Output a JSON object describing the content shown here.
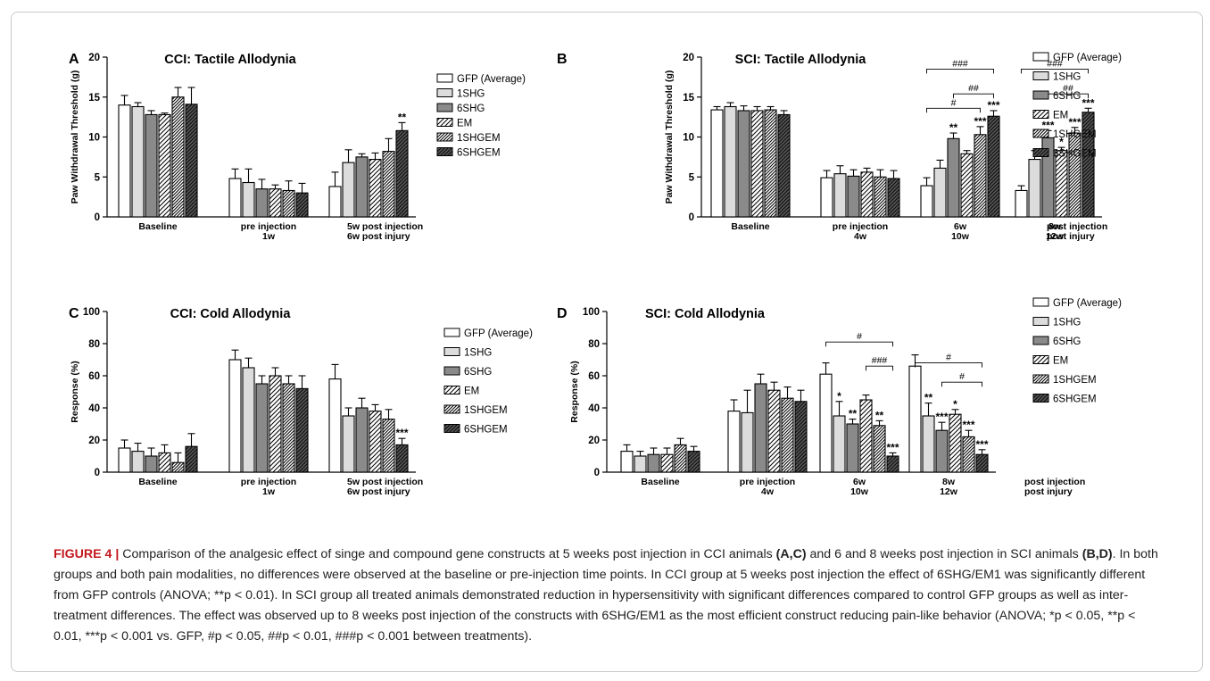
{
  "legend_labels": [
    "GFP (Average)",
    "1SHG",
    "6SHG",
    "EM",
    "1SHGEM",
    "6SHGEM"
  ],
  "colors": {
    "GFP": "#ffffff",
    "1SHG": "#dcdcdc",
    "6SHG": "#8a8a8a",
    "EM": "#ffffff",
    "1SHGEM": "#ffffff",
    "6SHGEM": "#555555"
  },
  "chart_data": [
    {
      "type": "bar",
      "panel": "A",
      "title": "CCI:   Tactile Allodynia",
      "ylabel": "Paw Withdrawal Threshold (g)",
      "ylim": [
        0,
        20
      ],
      "yticks": [
        0,
        5,
        10,
        15,
        20
      ],
      "groups": [
        {
          "label1": "Baseline",
          "label2": "",
          "values": [
            14.0,
            13.8,
            12.8,
            12.8,
            15.0,
            14.1
          ],
          "errors": [
            1.2,
            0.5,
            0.5,
            0.2,
            1.2,
            2.1
          ],
          "stars": [
            "",
            "",
            "",
            "",
            "",
            ""
          ]
        },
        {
          "label1": "pre injection",
          "label2": "1w",
          "values": [
            4.8,
            4.3,
            3.5,
            3.5,
            3.3,
            3.0
          ],
          "errors": [
            1.2,
            1.7,
            1.2,
            0.5,
            1.2,
            1.2
          ],
          "stars": [
            "",
            "",
            "",
            "",
            "",
            ""
          ]
        },
        {
          "label1": "5w   post injection",
          "label2": "6w   post injury",
          "values": [
            3.8,
            6.8,
            7.5,
            7.2,
            8.2,
            10.8
          ],
          "errors": [
            1.8,
            1.6,
            0.4,
            0.8,
            1.6,
            1.0
          ],
          "stars": [
            "",
            "",
            "",
            "",
            "",
            "**"
          ]
        }
      ],
      "brackets": []
    },
    {
      "type": "bar",
      "panel": "B",
      "title": "SCI:   Tactile Allodynia",
      "ylabel": "Paw Withdrawal Threshold (g)",
      "ylim": [
        0,
        20
      ],
      "yticks": [
        0,
        5,
        10,
        15,
        20
      ],
      "groups": [
        {
          "label1": "Baseline",
          "label2": "",
          "values": [
            13.4,
            13.8,
            13.3,
            13.3,
            13.4,
            12.8
          ],
          "errors": [
            0.4,
            0.5,
            0.6,
            0.5,
            0.4,
            0.5
          ],
          "stars": [
            "",
            "",
            "",
            "",
            "",
            ""
          ]
        },
        {
          "label1": "pre injection",
          "label2": "4w",
          "values": [
            4.9,
            5.4,
            5.1,
            5.6,
            5.0,
            4.8
          ],
          "errors": [
            0.9,
            1.0,
            0.8,
            0.5,
            0.9,
            1.0
          ],
          "stars": [
            "",
            "",
            "",
            "",
            "",
            ""
          ]
        },
        {
          "label1": "6w",
          "label2": "10w",
          "values": [
            3.9,
            6.1,
            9.8,
            7.9,
            10.3,
            12.6
          ],
          "errors": [
            1.0,
            1.0,
            0.7,
            0.4,
            1.0,
            0.7
          ],
          "stars": [
            "",
            "",
            "**",
            "",
            "***",
            "***"
          ]
        },
        {
          "label1": "8w",
          "label2": "12w",
          "values": [
            3.3,
            7.2,
            9.9,
            8.3,
            10.5,
            13.1
          ],
          "errors": [
            0.6,
            1.1,
            0.9,
            0.4,
            0.7,
            0.5
          ],
          "stars": [
            "",
            "",
            "***",
            "*",
            "***",
            "***"
          ]
        }
      ],
      "trailing_labels": [
        "post injection",
        "post injury"
      ],
      "brackets": [
        {
          "group": 2,
          "from": 0,
          "to": 5,
          "y": 18.5,
          "label": "###"
        },
        {
          "group": 2,
          "from": 2,
          "to": 5,
          "y": 15.4,
          "label": "##"
        },
        {
          "group": 2,
          "from": 0,
          "to": 4,
          "y": 13.6,
          "label": "#"
        },
        {
          "group": 3,
          "from": 0,
          "to": 5,
          "y": 18.5,
          "label": "###"
        },
        {
          "group": 3,
          "from": 2,
          "to": 5,
          "y": 15.4,
          "label": "##"
        }
      ]
    },
    {
      "type": "bar",
      "panel": "C",
      "title": "CCI:   Cold Allodynia",
      "ylabel": "Response (%)",
      "ylim": [
        0,
        100
      ],
      "yticks": [
        0,
        20,
        40,
        60,
        80,
        100
      ],
      "groups": [
        {
          "label1": "Baseline",
          "label2": "",
          "values": [
            15,
            13,
            10,
            12,
            6,
            16
          ],
          "errors": [
            5,
            5,
            5,
            5,
            6,
            8
          ],
          "stars": [
            "",
            "",
            "",
            "",
            "",
            ""
          ]
        },
        {
          "label1": "pre injection",
          "label2": "1w",
          "values": [
            70,
            65,
            55,
            60,
            55,
            52
          ],
          "errors": [
            6,
            6,
            5,
            5,
            5,
            8
          ],
          "stars": [
            "",
            "",
            "",
            "",
            "",
            ""
          ]
        },
        {
          "label1": "5w   post injection",
          "label2": "6w   post injury",
          "values": [
            58,
            35,
            40,
            38,
            33,
            17
          ],
          "errors": [
            9,
            5,
            6,
            4,
            6,
            4
          ],
          "stars": [
            "",
            "",
            "",
            "",
            "",
            "***"
          ]
        }
      ],
      "brackets": []
    },
    {
      "type": "bar",
      "panel": "D",
      "title": "SCI:   Cold Allodynia",
      "ylabel": "Response (%)",
      "ylim": [
        0,
        100
      ],
      "yticks": [
        0,
        20,
        40,
        60,
        80,
        100
      ],
      "groups": [
        {
          "label1": "Baseline",
          "label2": "",
          "values": [
            13,
            10,
            11,
            11,
            17,
            13
          ],
          "errors": [
            4,
            3,
            4,
            4,
            4,
            3
          ],
          "stars": [
            "",
            "",
            "",
            "",
            "",
            ""
          ]
        },
        {
          "label1": "pre injection",
          "label2": "4w",
          "values": [
            38,
            37,
            55,
            51,
            46,
            44
          ],
          "errors": [
            7,
            14,
            6,
            5,
            7,
            7
          ],
          "stars": [
            "",
            "",
            "",
            "",
            "",
            ""
          ]
        },
        {
          "label1": "6w",
          "label2": "10w",
          "values": [
            61,
            35,
            30,
            45,
            29,
            10
          ],
          "errors": [
            7,
            9,
            3,
            3,
            3,
            2
          ],
          "stars": [
            "",
            "*",
            "**",
            "",
            "**",
            "***"
          ]
        },
        {
          "label1": "8w",
          "label2": "12w",
          "values": [
            66,
            35,
            26,
            36,
            22,
            11
          ],
          "errors": [
            7,
            8,
            5,
            3,
            4,
            3
          ],
          "stars": [
            "",
            "**",
            "***",
            "*",
            "***",
            "***"
          ]
        }
      ],
      "trailing_labels": [
        "post injection",
        "post injury"
      ],
      "brackets": [
        {
          "group": 2,
          "from": 0,
          "to": 5,
          "y": 81,
          "label": "#"
        },
        {
          "group": 2,
          "from": 3,
          "to": 5,
          "y": 66,
          "label": "###"
        },
        {
          "group": 3,
          "from": 0,
          "to": 5,
          "y": 68,
          "label": "#"
        },
        {
          "group": 3,
          "from": 2,
          "to": 5,
          "y": 56,
          "label": "#"
        }
      ]
    }
  ],
  "caption": {
    "figure_label": "FIGURE 4 |",
    "s1": " Comparison of the analgesic effect of singe and compound gene constructs at 5 weeks post injection in CCI animals ",
    "b1": "(A,C)",
    "s2": " and 6 and 8 weeks post injection in SCI animals ",
    "b2": "(B,D)",
    "s3": ". In both groups and both pain modalities, no differences were observed at the baseline or pre-injection time points. In CCI group at 5 weeks post injection the effect of 6SHG/EM1 was significantly different from GFP controls (ANOVA; **p < 0.01). In SCI group all treated animals demonstrated reduction in hypersensitivity with significant differences compared to control GFP groups as well as inter-treatment differences. The effect was observed up to 8 weeks post injection of the constructs with 6SHG/EM1 as the most efficient construct reducing pain-like behavior (ANOVA; *p < 0.05, **p < 0.01, ***p < 0.001 vs. GFP, #p < 0.05, ##p < 0.01, ###p < 0.001 between treatments)."
  }
}
